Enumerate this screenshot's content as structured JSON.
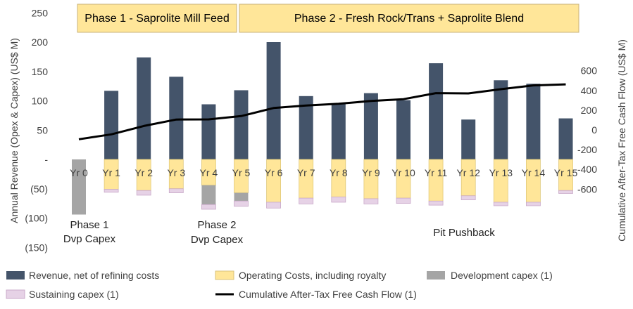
{
  "chart_data": {
    "type": "bar",
    "title": "",
    "categories": [
      "Yr 0",
      "Yr 1",
      "Yr 2",
      "Yr 3",
      "Yr 4",
      "Yr 5",
      "Yr 6",
      "Yr 7",
      "Yr 8",
      "Yr 9",
      "Yr 10",
      "Yr 11",
      "Yr 12",
      "Yr 13",
      "Yr 14",
      "Yr 15"
    ],
    "ylabel": "Annual Revenue (Opex & Capex) (US$ M)",
    "y2label": "Cumulative After-Tax Free Cash Flow (US$ M)",
    "ylim": [
      -150,
      250
    ],
    "y2lim": [
      -600,
      600
    ],
    "yticks": [
      "250",
      "200",
      "150",
      "100",
      "50",
      "-",
      "(50)",
      "(100)",
      "(150)"
    ],
    "y2ticks": [
      "600",
      "400",
      "200",
      "0",
      "-200",
      "-400",
      "-600"
    ],
    "series": [
      {
        "name": "Revenue, net of refining costs",
        "color": "#44546a",
        "values": [
          0,
          117,
          174,
          141,
          94,
          118,
          200,
          108,
          95,
          113,
          101,
          164,
          68,
          135,
          129,
          70
        ]
      },
      {
        "name": "Operating Costs, including royalty",
        "color": "#ffe699",
        "values": [
          0,
          -51,
          -53,
          -50,
          -44,
          -57,
          -73,
          -66,
          -64,
          -67,
          -66,
          -71,
          -62,
          -73,
          -73,
          -53
        ]
      },
      {
        "name": "Development capex (1)",
        "color": "#a5a5a5",
        "values": [
          -94,
          0,
          0,
          0,
          -33,
          -14,
          0,
          0,
          0,
          0,
          0,
          0,
          0,
          0,
          0,
          0
        ]
      },
      {
        "name": "Sustaining capex (1)",
        "color": "#e6d2e6",
        "values": [
          0,
          -5,
          -8,
          -7,
          -8,
          -9,
          -10,
          -10,
          -9,
          -9,
          -9,
          -7,
          -7,
          -6,
          -6,
          -5
        ]
      },
      {
        "name": "Cumulative After-Tax Free Cash Flow (1)",
        "color": "#000000",
        "axis": "secondary",
        "type": "line",
        "values": [
          -95,
          -45,
          40,
          105,
          107,
          140,
          222,
          248,
          265,
          293,
          312,
          373,
          370,
          413,
          451,
          462
        ]
      }
    ],
    "phases": [
      {
        "label": "Phase 1 - Saprolite Mill Feed"
      },
      {
        "label": "Phase 2 - Fresh Rock/Trans + Saprolite Blend"
      }
    ],
    "annotations": [
      {
        "lines": [
          "Phase 1",
          "Dvp Capex"
        ]
      },
      {
        "lines": [
          "Phase 2",
          "Dvp Capex"
        ]
      },
      {
        "lines": [
          "Pit Pushback"
        ]
      }
    ],
    "legend": {
      "position": "bottom"
    }
  }
}
